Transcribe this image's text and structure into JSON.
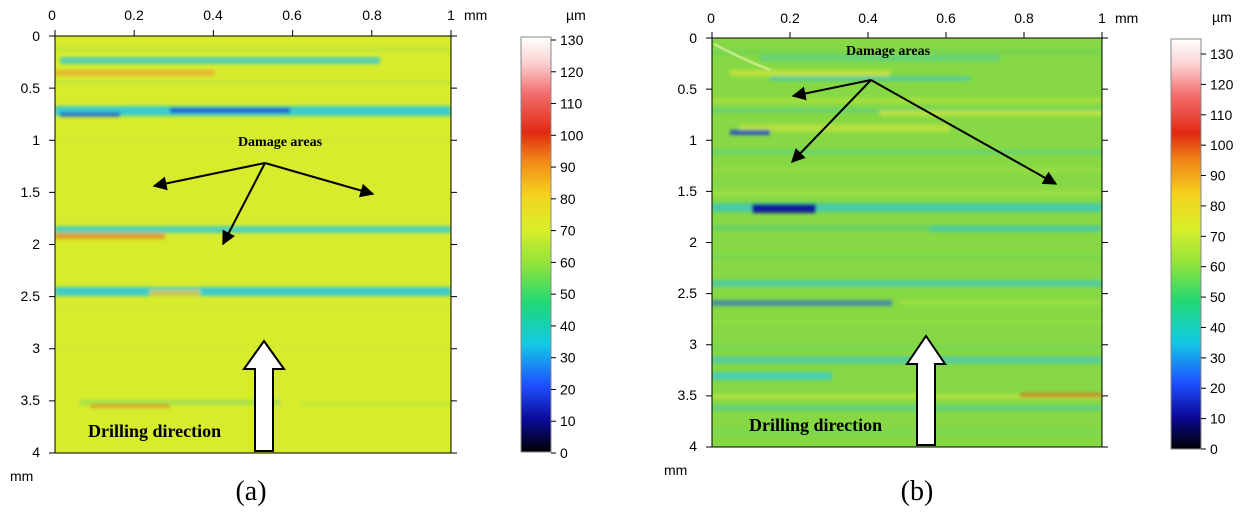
{
  "panels": [
    {
      "id": "a",
      "caption": "(a)",
      "x_unit": "mm",
      "y_unit": "mm",
      "x_ticks": [
        "0",
        "0.2",
        "0.4",
        "0.6",
        "0.8",
        "1"
      ],
      "y_ticks": [
        "0",
        "0.5",
        "1",
        "1.5",
        "2",
        "2.5",
        "3",
        "3.5",
        "4"
      ],
      "colorbar_unit": "µm",
      "colorbar_ticks": [
        "130",
        "120",
        "110",
        "100",
        "90",
        "80",
        "70",
        "60",
        "50",
        "40",
        "30",
        "20",
        "10",
        "0"
      ],
      "annotation_damage": "Damage areas",
      "annotation_drilling": "Drilling direction"
    },
    {
      "id": "b",
      "caption": "(b)",
      "x_unit": "mm",
      "y_unit": "mm",
      "x_ticks": [
        "0",
        "0.2",
        "0.4",
        "0.6",
        "0.8",
        "1"
      ],
      "y_ticks": [
        "0",
        "0.5",
        "1",
        "1.5",
        "2",
        "2.5",
        "3",
        "3.5",
        "4"
      ],
      "colorbar_unit": "µm",
      "colorbar_ticks": [
        "130",
        "120",
        "110",
        "100",
        "90",
        "80",
        "70",
        "60",
        "50",
        "40",
        "30",
        "20",
        "10",
        "0"
      ],
      "annotation_damage": "Damage areas",
      "annotation_drilling": "Drilling direction"
    }
  ],
  "colors": {
    "panel_a_background": "#d7ec2c",
    "panel_b_background": "#86d944",
    "damage_cyan": "#2ec9d8",
    "damage_blue": "#1f3fd0",
    "damage_red": "#e05a1c",
    "colormap": [
      "#000000",
      "#0a0a9a",
      "#1f4fff",
      "#12c9e6",
      "#20d874",
      "#8fe33c",
      "#dbee2a",
      "#f4d21e",
      "#f08a18",
      "#e02a10",
      "#f26a6a",
      "#fbd4d4",
      "#ffffff"
    ]
  }
}
